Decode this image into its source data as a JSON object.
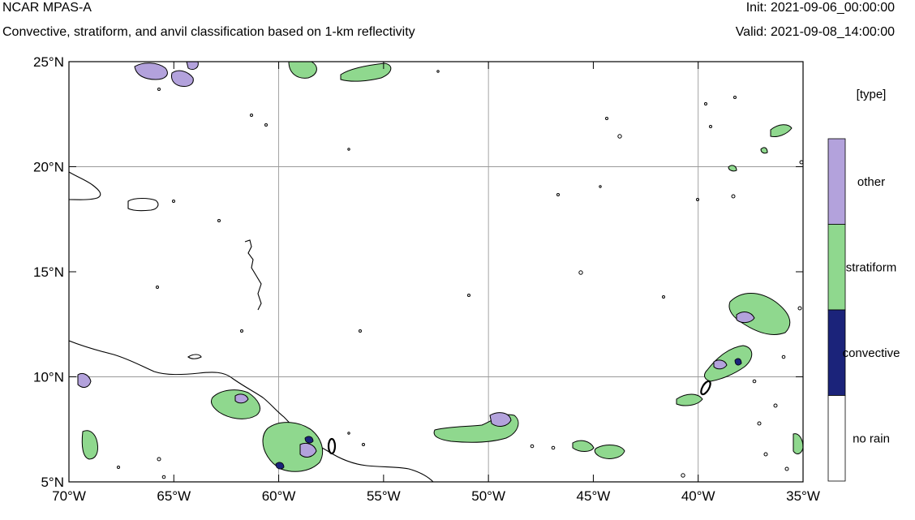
{
  "header": {
    "title": "NCAR MPAS-A",
    "subtitle": "Convective, stratiform, and anvil classification based on 1-km reflectivity",
    "init": "Init: 2021-09-06_00:00:00",
    "valid": "Valid: 2021-09-08_14:00:00"
  },
  "map": {
    "lon_range": [
      -70,
      -35
    ],
    "lat_range": [
      5,
      25
    ],
    "lon_ticks": [
      {
        "value": -70,
        "label": "70°W"
      },
      {
        "value": -65,
        "label": "65°W"
      },
      {
        "value": -60,
        "label": "60°W"
      },
      {
        "value": -55,
        "label": "55°W"
      },
      {
        "value": -50,
        "label": "50°W"
      },
      {
        "value": -45,
        "label": "45°W"
      },
      {
        "value": -40,
        "label": "40°W"
      },
      {
        "value": -35,
        "label": "35°W"
      }
    ],
    "lat_ticks": [
      {
        "value": 25,
        "label": "25°N"
      },
      {
        "value": 20,
        "label": "20°N"
      },
      {
        "value": 15,
        "label": "15°N"
      },
      {
        "value": 10,
        "label": "10°N"
      },
      {
        "value": 5,
        "label": "5°N"
      }
    ],
    "gridlines": true,
    "gridline_lons": [
      -60,
      -50,
      -40
    ],
    "gridline_lats": [
      20,
      10
    ]
  },
  "legend": {
    "title": "[type]",
    "placement": "right",
    "items": [
      {
        "label": "other",
        "color": "#b3a2dc"
      },
      {
        "label": "stratiform",
        "color": "#8fd88e"
      },
      {
        "label": "convective",
        "color": "#1b237a"
      },
      {
        "label": "no rain",
        "color": "#ffffff"
      }
    ]
  },
  "colors": {
    "other": "#b3a2dc",
    "stratiform": "#8fd88e",
    "convective": "#1b237a",
    "no_rain": "#ffffff",
    "coastline": "#000000",
    "gridline": "#9a9a9a"
  }
}
